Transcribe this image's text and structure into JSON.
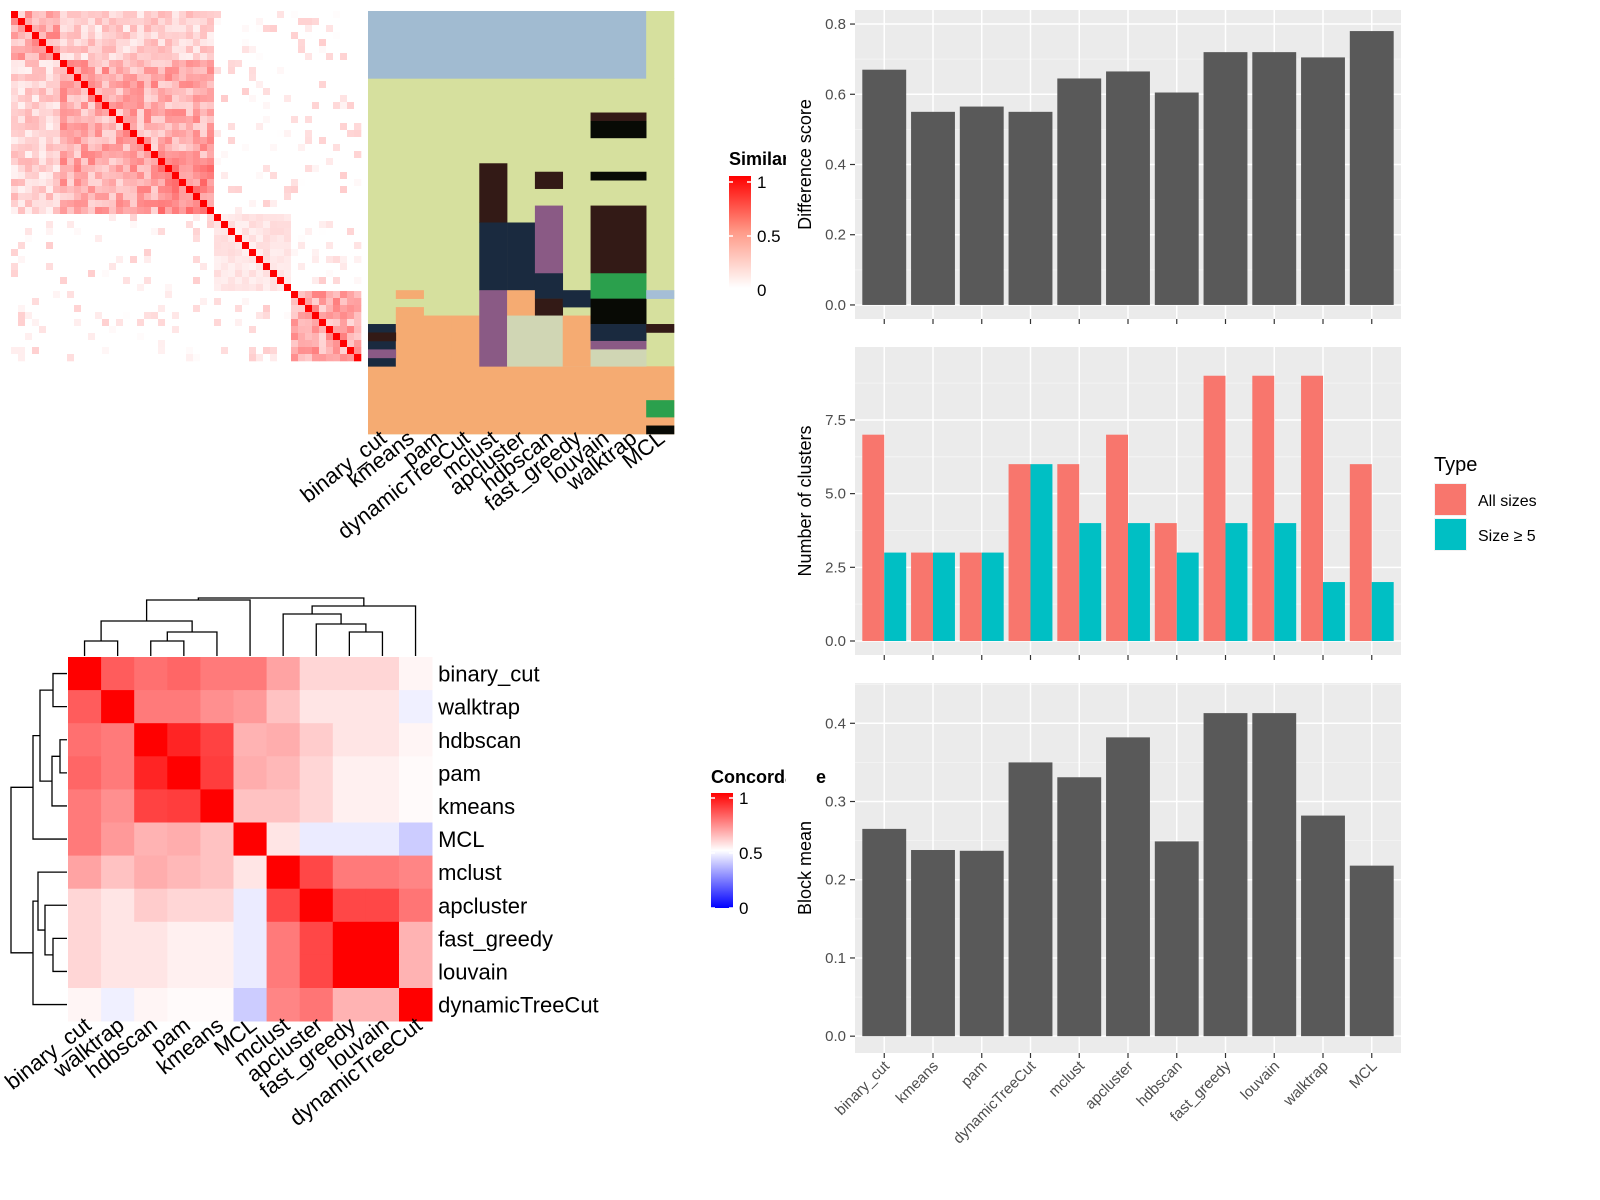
{
  "methods": [
    "binary_cut",
    "kmeans",
    "pam",
    "dynamicTreeCut",
    "mclust",
    "apcluster",
    "hdbscan",
    "fast_greedy",
    "louvain",
    "walktrap",
    "MCL"
  ],
  "sim_legend": {
    "title": "Similarity",
    "ticks": [
      "1",
      "0.5",
      "0"
    ]
  },
  "conc_legend": {
    "title": "Concordance",
    "ticks": [
      "1",
      "0.5",
      "0"
    ]
  },
  "type_legend": {
    "title": "Type",
    "items": [
      "All sizes",
      "Size ≥ 5"
    ],
    "colors": [
      "#F8766D",
      "#00BFC4"
    ]
  },
  "colors": {
    "panel_bg": "#EBEBEB",
    "bar_dark": "#595959",
    "red": "#FF0000",
    "blue": "#0000FF"
  },
  "chart_data": [
    {
      "type": "bar",
      "categories": [
        "binary_cut",
        "kmeans",
        "pam",
        "dynamicTreeCut",
        "mclust",
        "apcluster",
        "hdbscan",
        "fast_greedy",
        "louvain",
        "walktrap",
        "MCL"
      ],
      "values": [
        0.67,
        0.55,
        0.565,
        0.55,
        0.645,
        0.665,
        0.605,
        0.72,
        0.72,
        0.705,
        0.78
      ],
      "ylabel": "Difference score",
      "ylim": [
        0,
        0.8
      ],
      "yticks": [
        "0.0",
        "0.2",
        "0.4",
        "0.6",
        "0.8"
      ]
    },
    {
      "type": "bar",
      "categories": [
        "binary_cut",
        "kmeans",
        "pam",
        "dynamicTreeCut",
        "mclust",
        "apcluster",
        "hdbscan",
        "fast_greedy",
        "louvain",
        "walktrap",
        "MCL"
      ],
      "series": [
        {
          "name": "All sizes",
          "values": [
            7,
            3,
            3,
            6,
            6,
            7,
            4,
            9,
            9,
            9,
            6
          ]
        },
        {
          "name": "Size ≥ 5",
          "values": [
            3,
            3,
            3,
            6,
            4,
            4,
            3,
            4,
            4,
            2,
            2
          ]
        }
      ],
      "ylabel": "Number of clusters",
      "ylim": [
        0,
        9.5
      ],
      "yticks": [
        "0.0",
        "2.5",
        "5.0",
        "7.5"
      ]
    },
    {
      "type": "bar",
      "categories": [
        "binary_cut",
        "kmeans",
        "pam",
        "dynamicTreeCut",
        "mclust",
        "apcluster",
        "hdbscan",
        "fast_greedy",
        "louvain",
        "walktrap",
        "MCL"
      ],
      "values": [
        0.265,
        0.238,
        0.237,
        0.35,
        0.331,
        0.382,
        0.249,
        0.413,
        0.413,
        0.282,
        0.218
      ],
      "ylabel": "Block mean",
      "ylim": [
        0,
        0.43
      ],
      "yticks": [
        "0.0",
        "0.1",
        "0.2",
        "0.3",
        "0.4"
      ]
    },
    {
      "type": "heatmap",
      "rows": [
        "binary_cut",
        "walktrap",
        "hdbscan",
        "pam",
        "kmeans",
        "MCL",
        "mclust",
        "apcluster",
        "fast_greedy",
        "louvain",
        "dynamicTreeCut"
      ],
      "cols": [
        "binary_cut",
        "walktrap",
        "hdbscan",
        "pam",
        "kmeans",
        "MCL",
        "mclust",
        "apcluster",
        "fast_greedy",
        "louvain",
        "dynamicTreeCut"
      ],
      "values": [
        [
          1.0,
          0.82,
          0.78,
          0.8,
          0.76,
          0.76,
          0.68,
          0.58,
          0.58,
          0.58,
          0.52
        ],
        [
          0.82,
          1.0,
          0.76,
          0.76,
          0.72,
          0.7,
          0.62,
          0.55,
          0.55,
          0.55,
          0.47
        ],
        [
          0.78,
          0.76,
          1.0,
          0.93,
          0.87,
          0.65,
          0.66,
          0.6,
          0.55,
          0.55,
          0.52
        ],
        [
          0.8,
          0.76,
          0.93,
          1.0,
          0.88,
          0.66,
          0.64,
          0.58,
          0.53,
          0.53,
          0.51
        ],
        [
          0.76,
          0.72,
          0.87,
          0.88,
          1.0,
          0.62,
          0.62,
          0.58,
          0.53,
          0.53,
          0.51
        ],
        [
          0.76,
          0.7,
          0.65,
          0.66,
          0.62,
          1.0,
          0.55,
          0.46,
          0.46,
          0.46,
          0.4
        ],
        [
          0.68,
          0.62,
          0.66,
          0.64,
          0.62,
          0.55,
          1.0,
          0.86,
          0.76,
          0.76,
          0.74
        ],
        [
          0.58,
          0.55,
          0.6,
          0.58,
          0.58,
          0.46,
          0.86,
          1.0,
          0.86,
          0.86,
          0.77
        ],
        [
          0.58,
          0.55,
          0.55,
          0.53,
          0.53,
          0.46,
          0.76,
          0.86,
          1.0,
          1.0,
          0.65
        ],
        [
          0.58,
          0.55,
          0.55,
          0.53,
          0.53,
          0.46,
          0.76,
          0.86,
          1.0,
          1.0,
          0.65
        ],
        [
          0.52,
          0.47,
          0.52,
          0.51,
          0.51,
          0.4,
          0.74,
          0.77,
          0.65,
          0.65,
          1.0
        ]
      ]
    }
  ]
}
